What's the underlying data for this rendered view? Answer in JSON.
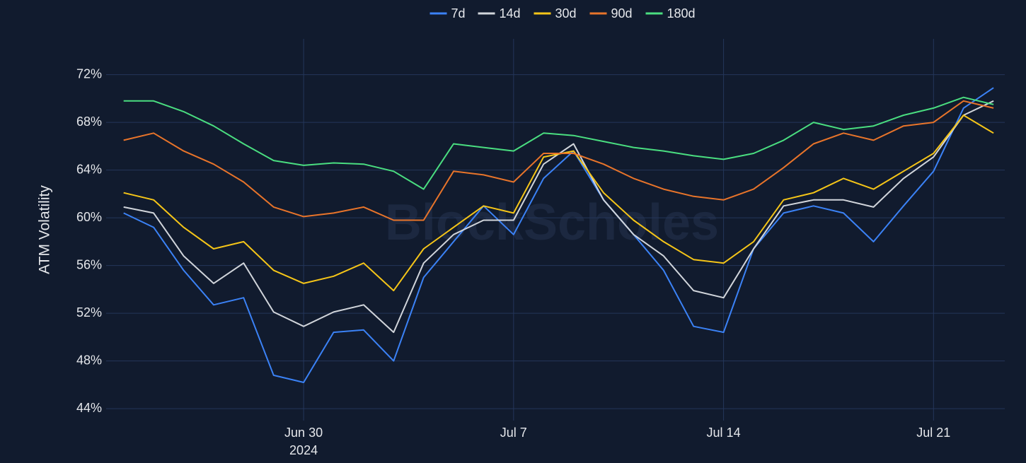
{
  "chart_data": {
    "type": "line",
    "y_axis_label": "ATM Volatility",
    "watermark": "BlockScholes",
    "x": [
      "2024-06-24",
      "2024-06-25",
      "2024-06-26",
      "2024-06-27",
      "2024-06-28",
      "2024-06-29",
      "2024-06-30",
      "2024-07-01",
      "2024-07-02",
      "2024-07-03",
      "2024-07-04",
      "2024-07-05",
      "2024-07-06",
      "2024-07-07",
      "2024-07-08",
      "2024-07-09",
      "2024-07-10",
      "2024-07-11",
      "2024-07-12",
      "2024-07-13",
      "2024-07-14",
      "2024-07-15",
      "2024-07-16",
      "2024-07-17",
      "2024-07-18",
      "2024-07-19",
      "2024-07-20",
      "2024-07-21",
      "2024-07-22",
      "2024-07-23"
    ],
    "xlim": [
      "2024-06-23T10:00:00Z",
      "2024-07-23T09:00:00Z"
    ],
    "xticks": [
      {
        "value": "2024-06-30",
        "label": "Jun 30"
      },
      {
        "value": "2024-07-07",
        "label": "Jul 7"
      },
      {
        "value": "2024-07-14",
        "label": "Jul 14"
      },
      {
        "value": "2024-07-21",
        "label": "Jul 21"
      }
    ],
    "x_year_label": "2024",
    "ylim": [
      43,
      75
    ],
    "yticks": [
      {
        "value": 44,
        "label": "44%"
      },
      {
        "value": 48,
        "label": "48%"
      },
      {
        "value": 52,
        "label": "52%"
      },
      {
        "value": 56,
        "label": "56%"
      },
      {
        "value": 60,
        "label": "60%"
      },
      {
        "value": 64,
        "label": "64%"
      },
      {
        "value": 68,
        "label": "68%"
      },
      {
        "value": 72,
        "label": "72%"
      }
    ],
    "grid": true,
    "legend_position": "top",
    "series": [
      {
        "name": "7d",
        "color": "#3b82f6",
        "values": [
          60.4,
          59.2,
          55.6,
          52.7,
          53.3,
          46.8,
          46.2,
          50.4,
          50.6,
          48,
          55,
          58,
          61,
          58.6,
          63.3,
          65.6,
          61.5,
          58.6,
          55.6,
          50.9,
          50.4,
          57.4,
          60.4,
          61,
          60.4,
          58,
          61,
          63.9,
          69.2,
          70.9
        ]
      },
      {
        "name": "14d",
        "color": "#d1d5db",
        "values": [
          60.9,
          60.4,
          56.8,
          54.5,
          56.2,
          52.1,
          50.9,
          52.1,
          52.7,
          50.4,
          56.2,
          58.6,
          59.8,
          59.8,
          64.5,
          66.2,
          61.5,
          58.6,
          56.8,
          53.9,
          53.3,
          57.4,
          61,
          61.5,
          61.5,
          60.9,
          63.3,
          65.1,
          68.6,
          69.8
        ]
      },
      {
        "name": "30d",
        "color": "#f5c518",
        "values": [
          62.1,
          61.5,
          59.2,
          57.4,
          58,
          55.6,
          54.5,
          55.1,
          56.2,
          53.9,
          57.4,
          59.2,
          61,
          60.4,
          65.1,
          65.6,
          62.1,
          59.8,
          58,
          56.5,
          56.2,
          58,
          61.5,
          62.1,
          63.3,
          62.4,
          63.9,
          65.4,
          68.6,
          67.1
        ]
      },
      {
        "name": "90d",
        "color": "#e8742a",
        "values": [
          66.5,
          67.1,
          65.6,
          64.5,
          63,
          60.9,
          60.1,
          60.4,
          60.9,
          59.8,
          59.8,
          63.9,
          63.6,
          63,
          65.4,
          65.4,
          64.5,
          63.3,
          62.4,
          61.8,
          61.5,
          62.4,
          64.2,
          66.2,
          67.1,
          66.5,
          67.7,
          68,
          69.8,
          69.2
        ]
      },
      {
        "name": "180d",
        "color": "#4ade80",
        "values": [
          69.8,
          69.8,
          68.9,
          67.7,
          66.2,
          64.8,
          64.4,
          64.6,
          64.5,
          63.9,
          62.4,
          66.2,
          65.9,
          65.6,
          67.1,
          66.9,
          66.4,
          65.9,
          65.6,
          65.2,
          64.9,
          65.4,
          66.5,
          68,
          67.4,
          67.7,
          68.6,
          69.2,
          70.1,
          69.5
        ]
      }
    ]
  }
}
